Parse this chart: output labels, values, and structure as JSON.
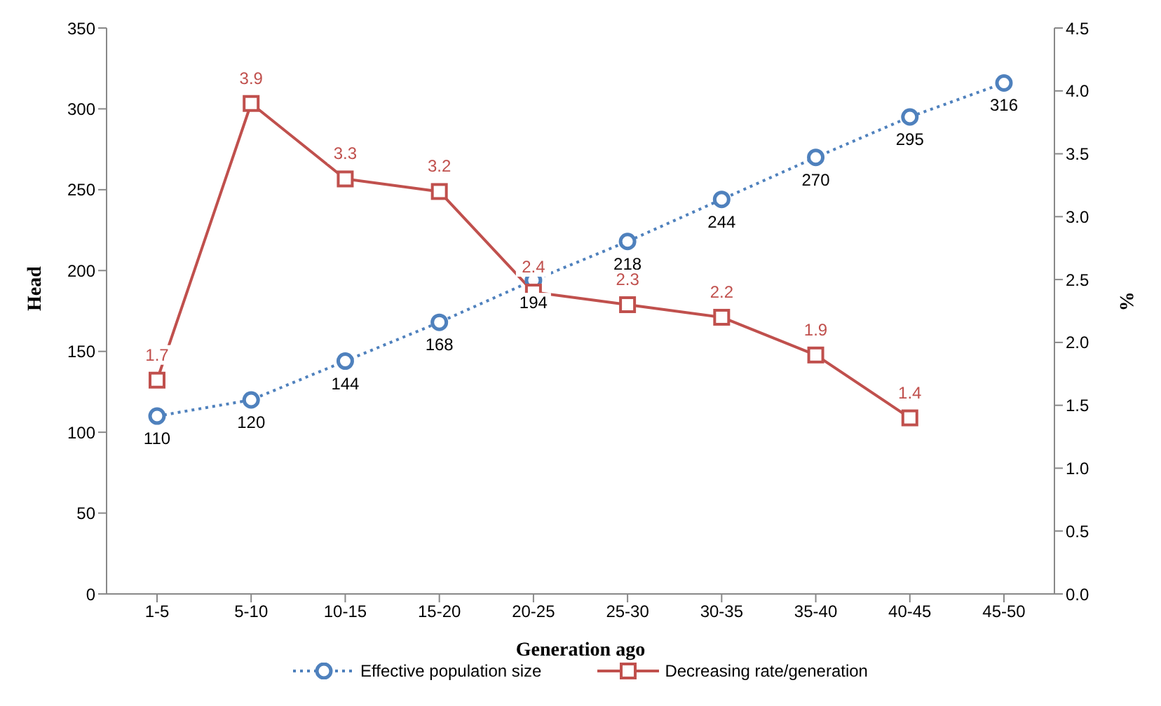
{
  "chart_data": {
    "type": "line",
    "xlabel": "Generation ago",
    "ylabel": "Head",
    "y2label": "%",
    "categories": [
      "1-5",
      "5-10",
      "10-15",
      "15-20",
      "20-25",
      "25-30",
      "30-35",
      "35-40",
      "40-45",
      "45-50"
    ],
    "series": [
      {
        "name": "Effective population size",
        "color": "#4f81bd",
        "marker": "circle",
        "line_style": "dotted",
        "values": [
          110,
          120,
          144,
          168,
          194,
          218,
          244,
          270,
          295,
          316
        ]
      },
      {
        "name": "Decreasing rate/generation",
        "color": "#c0504d",
        "marker": "square",
        "line_style": "solid",
        "axis": "y2",
        "values": [
          1.7,
          3.9,
          3.3,
          3.2,
          2.4,
          2.3,
          2.2,
          1.9,
          1.4,
          null
        ]
      }
    ],
    "ylim": [
      0,
      350
    ],
    "yticks": [
      0,
      50,
      100,
      150,
      200,
      250,
      300,
      350
    ],
    "y2lim": [
      0,
      4.5
    ],
    "y2ticks": [
      {
        "value": 0,
        "label": "0.0"
      },
      {
        "value": 0.5,
        "label": "0.5"
      },
      {
        "value": 1,
        "label": "1.0"
      },
      {
        "value": 1.5,
        "label": "1.5"
      },
      {
        "value": 2,
        "label": "2.0"
      },
      {
        "value": 2.5,
        "label": "2.5"
      },
      {
        "value": 3,
        "label": "3.0"
      },
      {
        "value": 3.5,
        "label": "3.5"
      },
      {
        "value": 4,
        "label": "4.0"
      },
      {
        "value": 4.5,
        "label": "4.5"
      }
    ],
    "data_labels": true,
    "grid": false,
    "legend": "bottom"
  }
}
